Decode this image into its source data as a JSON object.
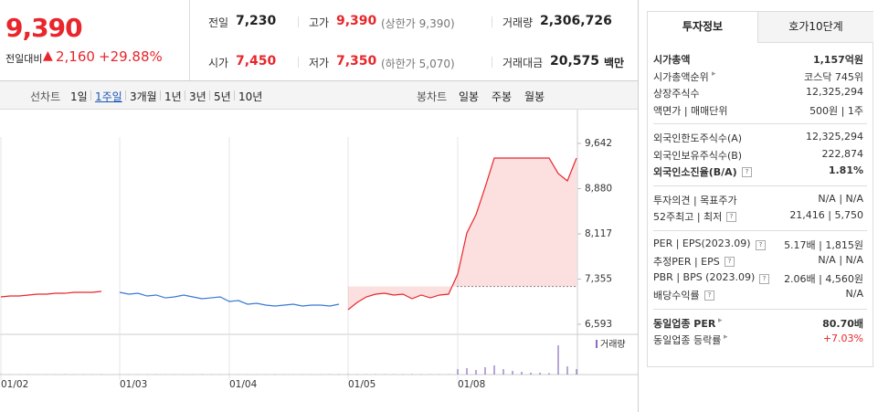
{
  "header": {
    "price": "9,390",
    "change_label": "전일대비",
    "change": "2,160",
    "change_pct": "+29.88%"
  },
  "summary": [
    [
      {
        "label": "전일",
        "value": "7,230"
      },
      {
        "label": "고가",
        "value": "9,390",
        "note": "(상한가 9,390)",
        "red": true
      },
      {
        "label": "거래량",
        "value": "2,306,726"
      }
    ],
    [
      {
        "label": "시가",
        "value": "7,450",
        "red": true
      },
      {
        "label": "저가",
        "value": "7,350",
        "note": "(하한가 5,070)",
        "red": true
      },
      {
        "label": "거래대금",
        "value": "20,575",
        "unit": "백만"
      }
    ]
  ],
  "toolbar": {
    "line_label": "선차트",
    "periods": [
      "1일",
      "1주일",
      "3개월",
      "1년",
      "3년",
      "5년",
      "10년"
    ],
    "active": 1,
    "candle_label": "봉차트",
    "candles": [
      "일봉",
      "주봉",
      "월봉"
    ]
  },
  "chart": {
    "type": "line",
    "categories": [
      "01/02",
      null,
      null,
      null,
      null,
      null,
      null,
      null,
      null,
      null,
      null,
      null,
      null,
      "01/03",
      null,
      null,
      null,
      null,
      null,
      null,
      null,
      null,
      null,
      null,
      null,
      "01/04",
      null,
      null,
      null,
      null,
      null,
      null,
      null,
      null,
      null,
      null,
      null,
      null,
      "01/05",
      null,
      null,
      null,
      null,
      null,
      null,
      null,
      null,
      null,
      null,
      null,
      "01/08",
      null,
      null,
      null,
      null,
      null,
      null,
      null,
      null,
      null,
      null,
      null,
      null,
      null
    ],
    "series": [
      {
        "color": "#e8262b",
        "values": [
          7055,
          7070,
          7070,
          7086,
          7101,
          7101,
          7116,
          7116,
          7132,
          7132,
          7132,
          7147,
          null,
          null,
          null,
          null,
          null,
          null,
          null,
          null,
          null,
          null,
          null,
          null,
          null,
          null,
          null,
          null,
          null,
          null,
          null,
          null,
          null,
          null,
          null,
          null,
          null,
          null,
          6839,
          6963,
          7055,
          7101,
          7116,
          7086,
          7101,
          7024,
          7086,
          7039,
          7086,
          7101,
          7440,
          8133,
          8441,
          8903,
          9396,
          9396,
          9396,
          9396,
          9396,
          9396,
          9396,
          9134,
          9011,
          9396
        ]
      },
      {
        "color": "#3a78d6",
        "values": [
          null,
          null,
          null,
          null,
          null,
          null,
          null,
          null,
          null,
          null,
          null,
          null,
          null,
          7132,
          7101,
          7116,
          7070,
          7086,
          7039,
          7055,
          7086,
          7055,
          7024,
          7039,
          7055,
          6978,
          6993,
          6932,
          6947,
          6916,
          6901,
          6916,
          6932,
          6901,
          6916,
          6916,
          6901,
          6932,
          null,
          null,
          null,
          null,
          null,
          null,
          null,
          null,
          null,
          null,
          null,
          null,
          null,
          null,
          null,
          null,
          null,
          null,
          null,
          null,
          null,
          null,
          null,
          null,
          null,
          null
        ]
      }
    ],
    "reference": 7230,
    "ylim": [
      6593,
      9642
    ],
    "yticks": [
      {
        "value": 9642,
        "label": "9,642"
      },
      {
        "value": 8880,
        "label": "8,880"
      },
      {
        "value": 8117,
        "label": "8,117"
      },
      {
        "value": 7355,
        "label": "7,355"
      },
      {
        "value": 6593,
        "label": "6,593"
      }
    ],
    "volume": {
      "name": "거래량",
      "color": "#8a6bbd",
      "ylim": [
        0,
        400000
      ],
      "values": [
        3000,
        2000,
        2000,
        3000,
        2000,
        2000,
        2000,
        3000,
        2000,
        2000,
        2000,
        3000,
        null,
        3000,
        2000,
        2000,
        2000,
        3000,
        2000,
        2000,
        2000,
        2000,
        3000,
        2000,
        2000,
        3000,
        2000,
        2000,
        2000,
        2000,
        3000,
        2000,
        2000,
        2000,
        2000,
        2000,
        3000,
        4000,
        5000,
        3000,
        3000,
        4000,
        3000,
        3000,
        3000,
        4000,
        3000,
        3000,
        3000,
        3000,
        60000,
        70000,
        50000,
        80000,
        100000,
        60000,
        40000,
        30000,
        20000,
        20000,
        15000,
        320000,
        90000,
        60000
      ]
    }
  },
  "info": {
    "tabs": [
      "투자정보",
      "호가10단계"
    ],
    "groups": [
      [
        {
          "label": "시가총액",
          "value": "1,157억원",
          "bold": true
        },
        {
          "label": "시가총액순위",
          "value": "코스닥 745위",
          "link": true
        },
        {
          "label": "상장주식수",
          "value": "12,325,294"
        },
        {
          "label": "액면가 | 매매단위",
          "value": "500원 | 1주"
        }
      ],
      [
        {
          "label": "외국인한도주식수(A)",
          "value": "12,325,294"
        },
        {
          "label": "외국인보유주식수(B)",
          "value": "222,874"
        },
        {
          "label": "외국인소진율(B/A)",
          "value": "1.81%",
          "bold": true,
          "help": true
        }
      ],
      [
        {
          "label": "투자의견 | 목표주가",
          "value": "N/A | N/A"
        },
        {
          "label": "52주최고 | 최저",
          "value": "21,416 | 5,750",
          "help": true
        }
      ],
      [
        {
          "label": "PER | EPS(2023.09)",
          "value": "5.17배 | 1,815원",
          "help": true
        },
        {
          "label": "추정PER | EPS",
          "value": "N/A | N/A",
          "help": true
        },
        {
          "label": "PBR | BPS (2023.09)",
          "value": "2.06배 | 4,560원",
          "help": true
        },
        {
          "label": "배당수익률",
          "value": "N/A",
          "help": true
        }
      ],
      [
        {
          "label": "동일업종 PER",
          "value": "80.70배",
          "bold": true,
          "link": true
        },
        {
          "label": "동일업종 등락률",
          "value": "+7.03%",
          "link": true,
          "red": true
        }
      ]
    ]
  }
}
